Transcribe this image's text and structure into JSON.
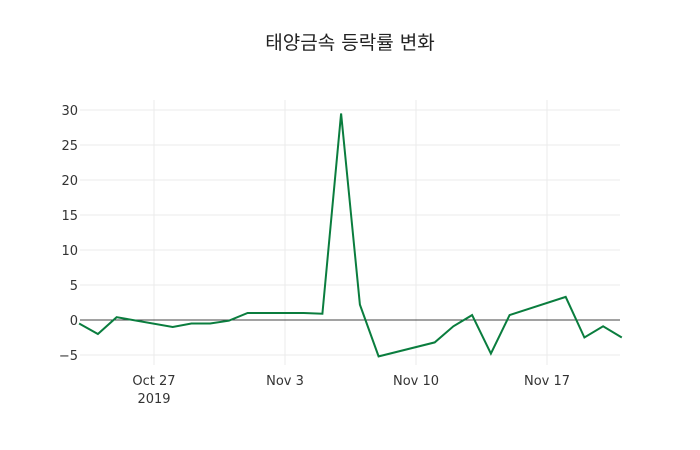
{
  "chart_data": {
    "type": "line",
    "title": "태양금속 등락률 변화",
    "xlabel": "",
    "ylabel": "",
    "x": [
      "2019-10-23",
      "2019-10-24",
      "2019-10-25",
      "2019-10-28",
      "2019-10-29",
      "2019-10-30",
      "2019-10-31",
      "2019-11-01",
      "2019-11-04",
      "2019-11-05",
      "2019-11-06",
      "2019-11-07",
      "2019-11-08",
      "2019-11-11",
      "2019-11-12",
      "2019-11-13",
      "2019-11-14",
      "2019-11-15",
      "2019-11-18",
      "2019-11-19",
      "2019-11-20",
      "2019-11-21"
    ],
    "series": [
      {
        "name": "등락률",
        "color": "#0a7d3e",
        "values": [
          -0.5,
          -2.0,
          0.4,
          -1.0,
          -0.5,
          -0.5,
          -0.1,
          1.0,
          1.0,
          0.9,
          29.5,
          2.2,
          -5.2,
          -3.2,
          -0.9,
          0.7,
          -4.8,
          0.7,
          3.3,
          -2.5,
          -0.9,
          -2.5
        ]
      }
    ],
    "xticks": [
      {
        "date": "2019-10-27",
        "label": "Oct 27",
        "sublabel": "2019"
      },
      {
        "date": "2019-11-03",
        "label": "Nov 3",
        "sublabel": ""
      },
      {
        "date": "2019-11-10",
        "label": "Nov 10",
        "sublabel": ""
      },
      {
        "date": "2019-11-17",
        "label": "Nov 17",
        "sublabel": ""
      }
    ],
    "yticks": [
      -5,
      0,
      5,
      10,
      15,
      20,
      25,
      30
    ],
    "ytick_labels": [
      "−5",
      "0",
      "5",
      "10",
      "15",
      "20",
      "25",
      "30"
    ],
    "ylim": [
      -5.5,
      31
    ],
    "grid": true,
    "legend": "none"
  }
}
